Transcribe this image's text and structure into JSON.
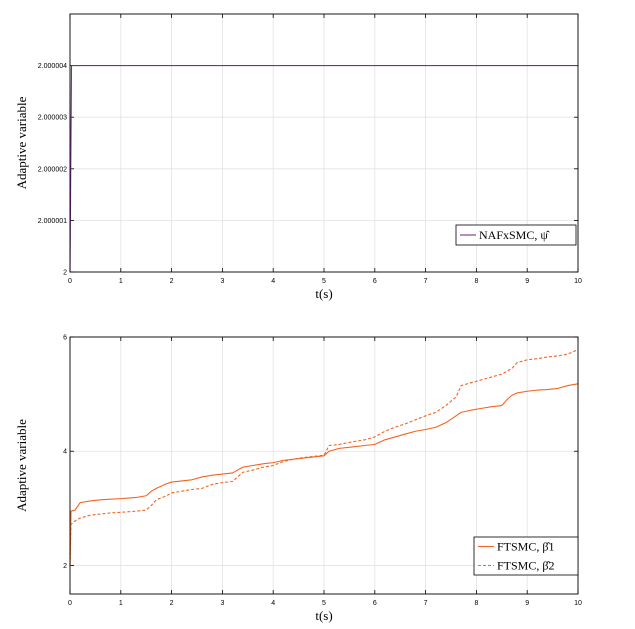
{
  "chart_data": [
    {
      "type": "line",
      "xlabel": "t(s)",
      "ylabel": "Adaptive variable",
      "xlim": [
        0,
        10
      ],
      "ylim": [
        2,
        2.000005
      ],
      "xticks": [
        "0",
        "1",
        "2",
        "3",
        "4",
        "5",
        "6",
        "7",
        "8",
        "9",
        "10"
      ],
      "yticks": [
        "2",
        "2.000001",
        "2.000002",
        "2.000003",
        "2.000004"
      ],
      "grid": true,
      "legend_position": "bottom-right",
      "series": [
        {
          "name": "NAFxSMC, ψ̂",
          "color": "#7b2d8e",
          "style": "solid",
          "x": [
            0,
            0.03,
            0.05,
            10
          ],
          "y": [
            2,
            2.000004,
            2.000004,
            2.000004
          ]
        }
      ]
    },
    {
      "type": "line",
      "xlabel": "t(s)",
      "ylabel": "Adaptive variable",
      "xlim": [
        0,
        10
      ],
      "ylim": [
        1.5,
        6
      ],
      "xticks": [
        "0",
        "1",
        "2",
        "3",
        "4",
        "5",
        "6",
        "7",
        "8",
        "9",
        "10"
      ],
      "yticks": [
        "2",
        "4",
        "6"
      ],
      "grid": true,
      "legend_position": "bottom-right",
      "series": [
        {
          "name": "FTSMC, β̂1",
          "color": "#f26522",
          "style": "solid",
          "x": [
            0,
            0.02,
            0.1,
            0.2,
            0.4,
            0.6,
            0.8,
            1.0,
            1.3,
            1.5,
            1.6,
            1.7,
            1.9,
            2.0,
            2.2,
            2.4,
            2.6,
            2.8,
            3.0,
            3.2,
            3.4,
            3.6,
            3.8,
            4.0,
            4.2,
            4.4,
            4.6,
            4.8,
            5.0,
            5.1,
            5.3,
            5.6,
            5.8,
            6.0,
            6.2,
            6.4,
            6.6,
            6.8,
            7.0,
            7.2,
            7.4,
            7.6,
            7.7,
            7.9,
            8.1,
            8.3,
            8.5,
            8.6,
            8.7,
            8.8,
            9.0,
            9.2,
            9.4,
            9.6,
            9.8,
            10.0
          ],
          "y": [
            2.0,
            2.95,
            2.97,
            3.1,
            3.13,
            3.15,
            3.16,
            3.17,
            3.19,
            3.22,
            3.3,
            3.35,
            3.43,
            3.46,
            3.48,
            3.5,
            3.55,
            3.58,
            3.6,
            3.62,
            3.72,
            3.75,
            3.78,
            3.8,
            3.84,
            3.86,
            3.88,
            3.9,
            3.92,
            4.0,
            4.05,
            4.08,
            4.1,
            4.12,
            4.2,
            4.25,
            4.3,
            4.35,
            4.38,
            4.42,
            4.5,
            4.62,
            4.68,
            4.72,
            4.75,
            4.78,
            4.8,
            4.9,
            4.98,
            5.02,
            5.05,
            5.07,
            5.08,
            5.1,
            5.15,
            5.18
          ]
        },
        {
          "name": "FTSMC, β̂2",
          "color": "#f26522",
          "style": "dashed",
          "x": [
            0,
            0.02,
            0.1,
            0.2,
            0.4,
            0.6,
            0.8,
            1.0,
            1.3,
            1.5,
            1.6,
            1.7,
            1.9,
            2.0,
            2.2,
            2.4,
            2.6,
            2.8,
            3.0,
            3.2,
            3.4,
            3.6,
            3.8,
            4.0,
            4.2,
            4.4,
            4.6,
            4.8,
            5.0,
            5.1,
            5.3,
            5.6,
            5.8,
            6.0,
            6.2,
            6.4,
            6.6,
            6.8,
            7.0,
            7.2,
            7.4,
            7.6,
            7.7,
            7.9,
            8.1,
            8.3,
            8.5,
            8.6,
            8.7,
            8.8,
            9.0,
            9.2,
            9.4,
            9.6,
            9.8,
            10.0
          ],
          "y": [
            2.0,
            2.72,
            2.78,
            2.83,
            2.88,
            2.9,
            2.92,
            2.93,
            2.95,
            2.97,
            3.05,
            3.15,
            3.22,
            3.27,
            3.3,
            3.33,
            3.35,
            3.42,
            3.45,
            3.47,
            3.63,
            3.67,
            3.72,
            3.75,
            3.82,
            3.86,
            3.89,
            3.91,
            3.93,
            4.1,
            4.12,
            4.17,
            4.2,
            4.25,
            4.35,
            4.42,
            4.48,
            4.55,
            4.62,
            4.68,
            4.8,
            4.95,
            5.15,
            5.2,
            5.25,
            5.3,
            5.35,
            5.4,
            5.45,
            5.55,
            5.6,
            5.62,
            5.65,
            5.67,
            5.7,
            5.78
          ]
        }
      ]
    }
  ]
}
